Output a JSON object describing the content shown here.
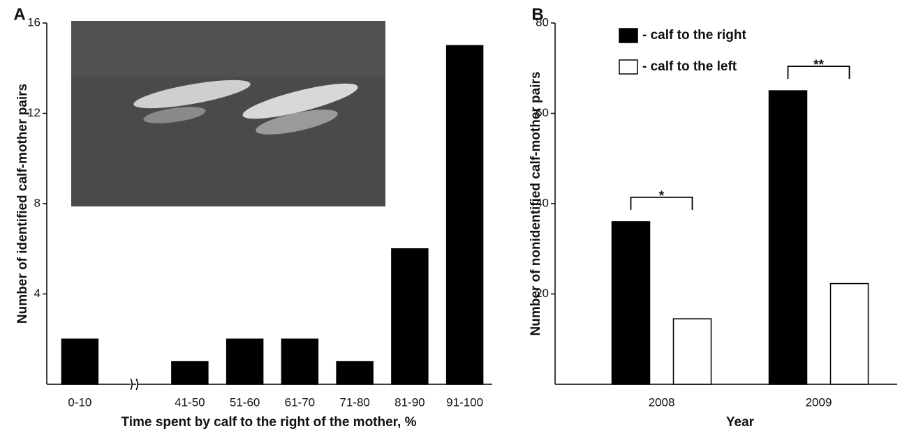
{
  "chart_data": [
    {
      "type": "bar",
      "panel_label": "A",
      "x_label": "Time spent by calf to the right of the mother, %",
      "y_label": "Number of identified calf-mother pairs",
      "categories": [
        "0-10",
        null,
        "41-50",
        "51-60",
        "61-70",
        "71-80",
        "81-90",
        "91-100"
      ],
      "values": [
        2,
        null,
        1,
        2,
        2,
        1,
        6,
        15
      ],
      "color": "#000000",
      "ylim": [
        0,
        16
      ],
      "yticks": [
        4,
        8,
        12,
        16
      ]
    },
    {
      "type": "grouped_bar",
      "panel_label": "B",
      "x_label": "Year",
      "y_label": "Number of nonidentified calf-mother pairs",
      "categories": [
        "2008",
        "2009"
      ],
      "series": [
        {
          "name": "- calf to the right",
          "color": "#000000",
          "values": [
            36,
            65
          ]
        },
        {
          "name": "- calf to the left",
          "color": "#ffffff",
          "values": [
            14.5,
            22.3
          ]
        }
      ],
      "annotations": [
        "*",
        "**"
      ],
      "ylim": [
        0,
        80
      ],
      "yticks": [
        20,
        40,
        60,
        80
      ]
    }
  ]
}
